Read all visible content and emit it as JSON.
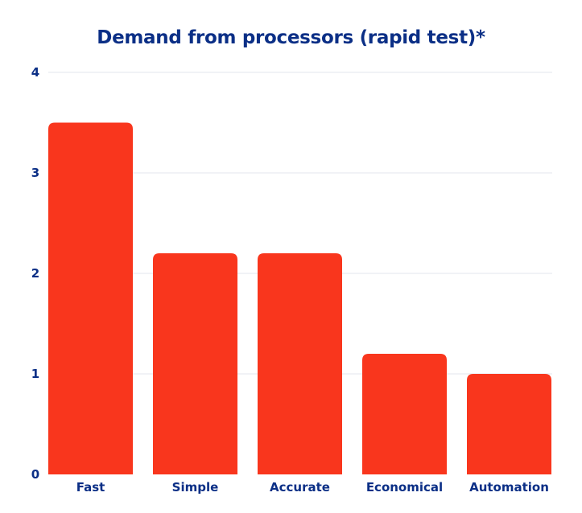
{
  "chart_data": {
    "type": "bar",
    "title": "Demand from processors (rapid test)*",
    "categories": [
      "Fast",
      "Simple",
      "Accurate",
      "Economical",
      "Automation"
    ],
    "values": [
      3.5,
      2.2,
      2.2,
      1.2,
      1.0
    ],
    "xlabel": "",
    "ylabel": "",
    "ylim": [
      0,
      4
    ],
    "yticks": [
      "0",
      "1",
      "2",
      "3",
      "4"
    ],
    "grid": true,
    "legend": "none"
  },
  "colors": {
    "bar": "#f9361d",
    "text": "#0b2f86",
    "grid": "#e3e6ee"
  }
}
